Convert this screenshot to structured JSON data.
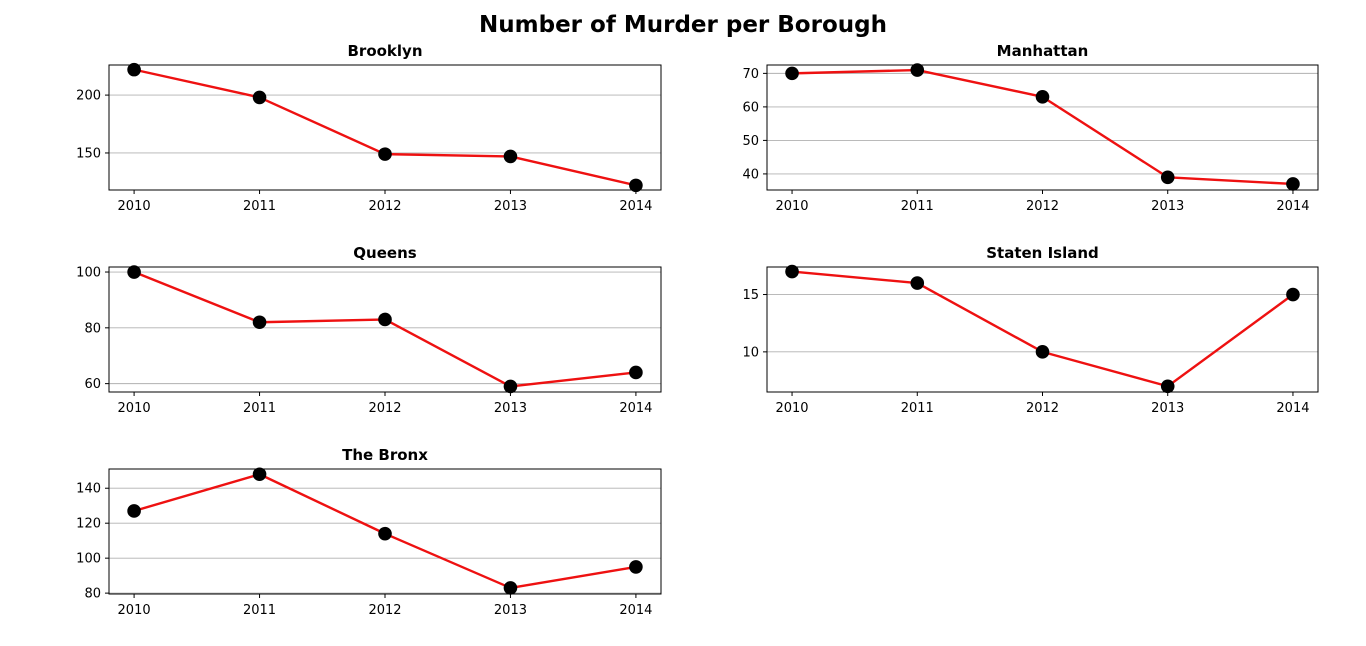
{
  "figure": {
    "title": "Number of Murder per Borough",
    "colors": {
      "line": "#ee1111",
      "marker": "#000000",
      "grid": "#b0b0b0"
    }
  },
  "chart_data": [
    {
      "type": "line",
      "title": "Brooklyn",
      "x": [
        2010,
        2011,
        2012,
        2013,
        2014
      ],
      "values": [
        222,
        198,
        149,
        147,
        122
      ],
      "xlim": [
        2009.8,
        2014.2
      ],
      "ylim": [
        118,
        226
      ],
      "yticks": [
        150,
        200
      ],
      "grid": "y-axis",
      "xlabel": "",
      "ylabel": ""
    },
    {
      "type": "line",
      "title": "Manhattan",
      "x": [
        2010,
        2011,
        2012,
        2013,
        2014
      ],
      "values": [
        70,
        71,
        63,
        39,
        37
      ],
      "xlim": [
        2009.8,
        2014.2
      ],
      "ylim": [
        35.2,
        72.5
      ],
      "yticks": [
        40,
        50,
        60,
        70
      ],
      "grid": "y-axis",
      "xlabel": "",
      "ylabel": ""
    },
    {
      "type": "line",
      "title": "Queens",
      "x": [
        2010,
        2011,
        2012,
        2013,
        2014
      ],
      "values": [
        100,
        82,
        83,
        59,
        64
      ],
      "xlim": [
        2009.8,
        2014.2
      ],
      "ylim": [
        57,
        101.8
      ],
      "yticks": [
        60,
        80,
        100
      ],
      "grid": "y-axis",
      "xlabel": "",
      "ylabel": ""
    },
    {
      "type": "line",
      "title": "Staten Island",
      "x": [
        2010,
        2011,
        2012,
        2013,
        2014
      ],
      "values": [
        17,
        16,
        10,
        7,
        15
      ],
      "xlim": [
        2009.8,
        2014.2
      ],
      "ylim": [
        6.5,
        17.4
      ],
      "yticks": [
        10,
        15
      ],
      "grid": "y-axis",
      "xlabel": "",
      "ylabel": ""
    },
    {
      "type": "line",
      "title": "The Bronx",
      "x": [
        2010,
        2011,
        2012,
        2013,
        2014
      ],
      "values": [
        127,
        148,
        114,
        83,
        95
      ],
      "xlim": [
        2009.8,
        2014.2
      ],
      "ylim": [
        79.5,
        151
      ],
      "yticks": [
        80,
        100,
        120,
        140
      ],
      "grid": "y-axis",
      "xlabel": "",
      "ylabel": ""
    }
  ]
}
